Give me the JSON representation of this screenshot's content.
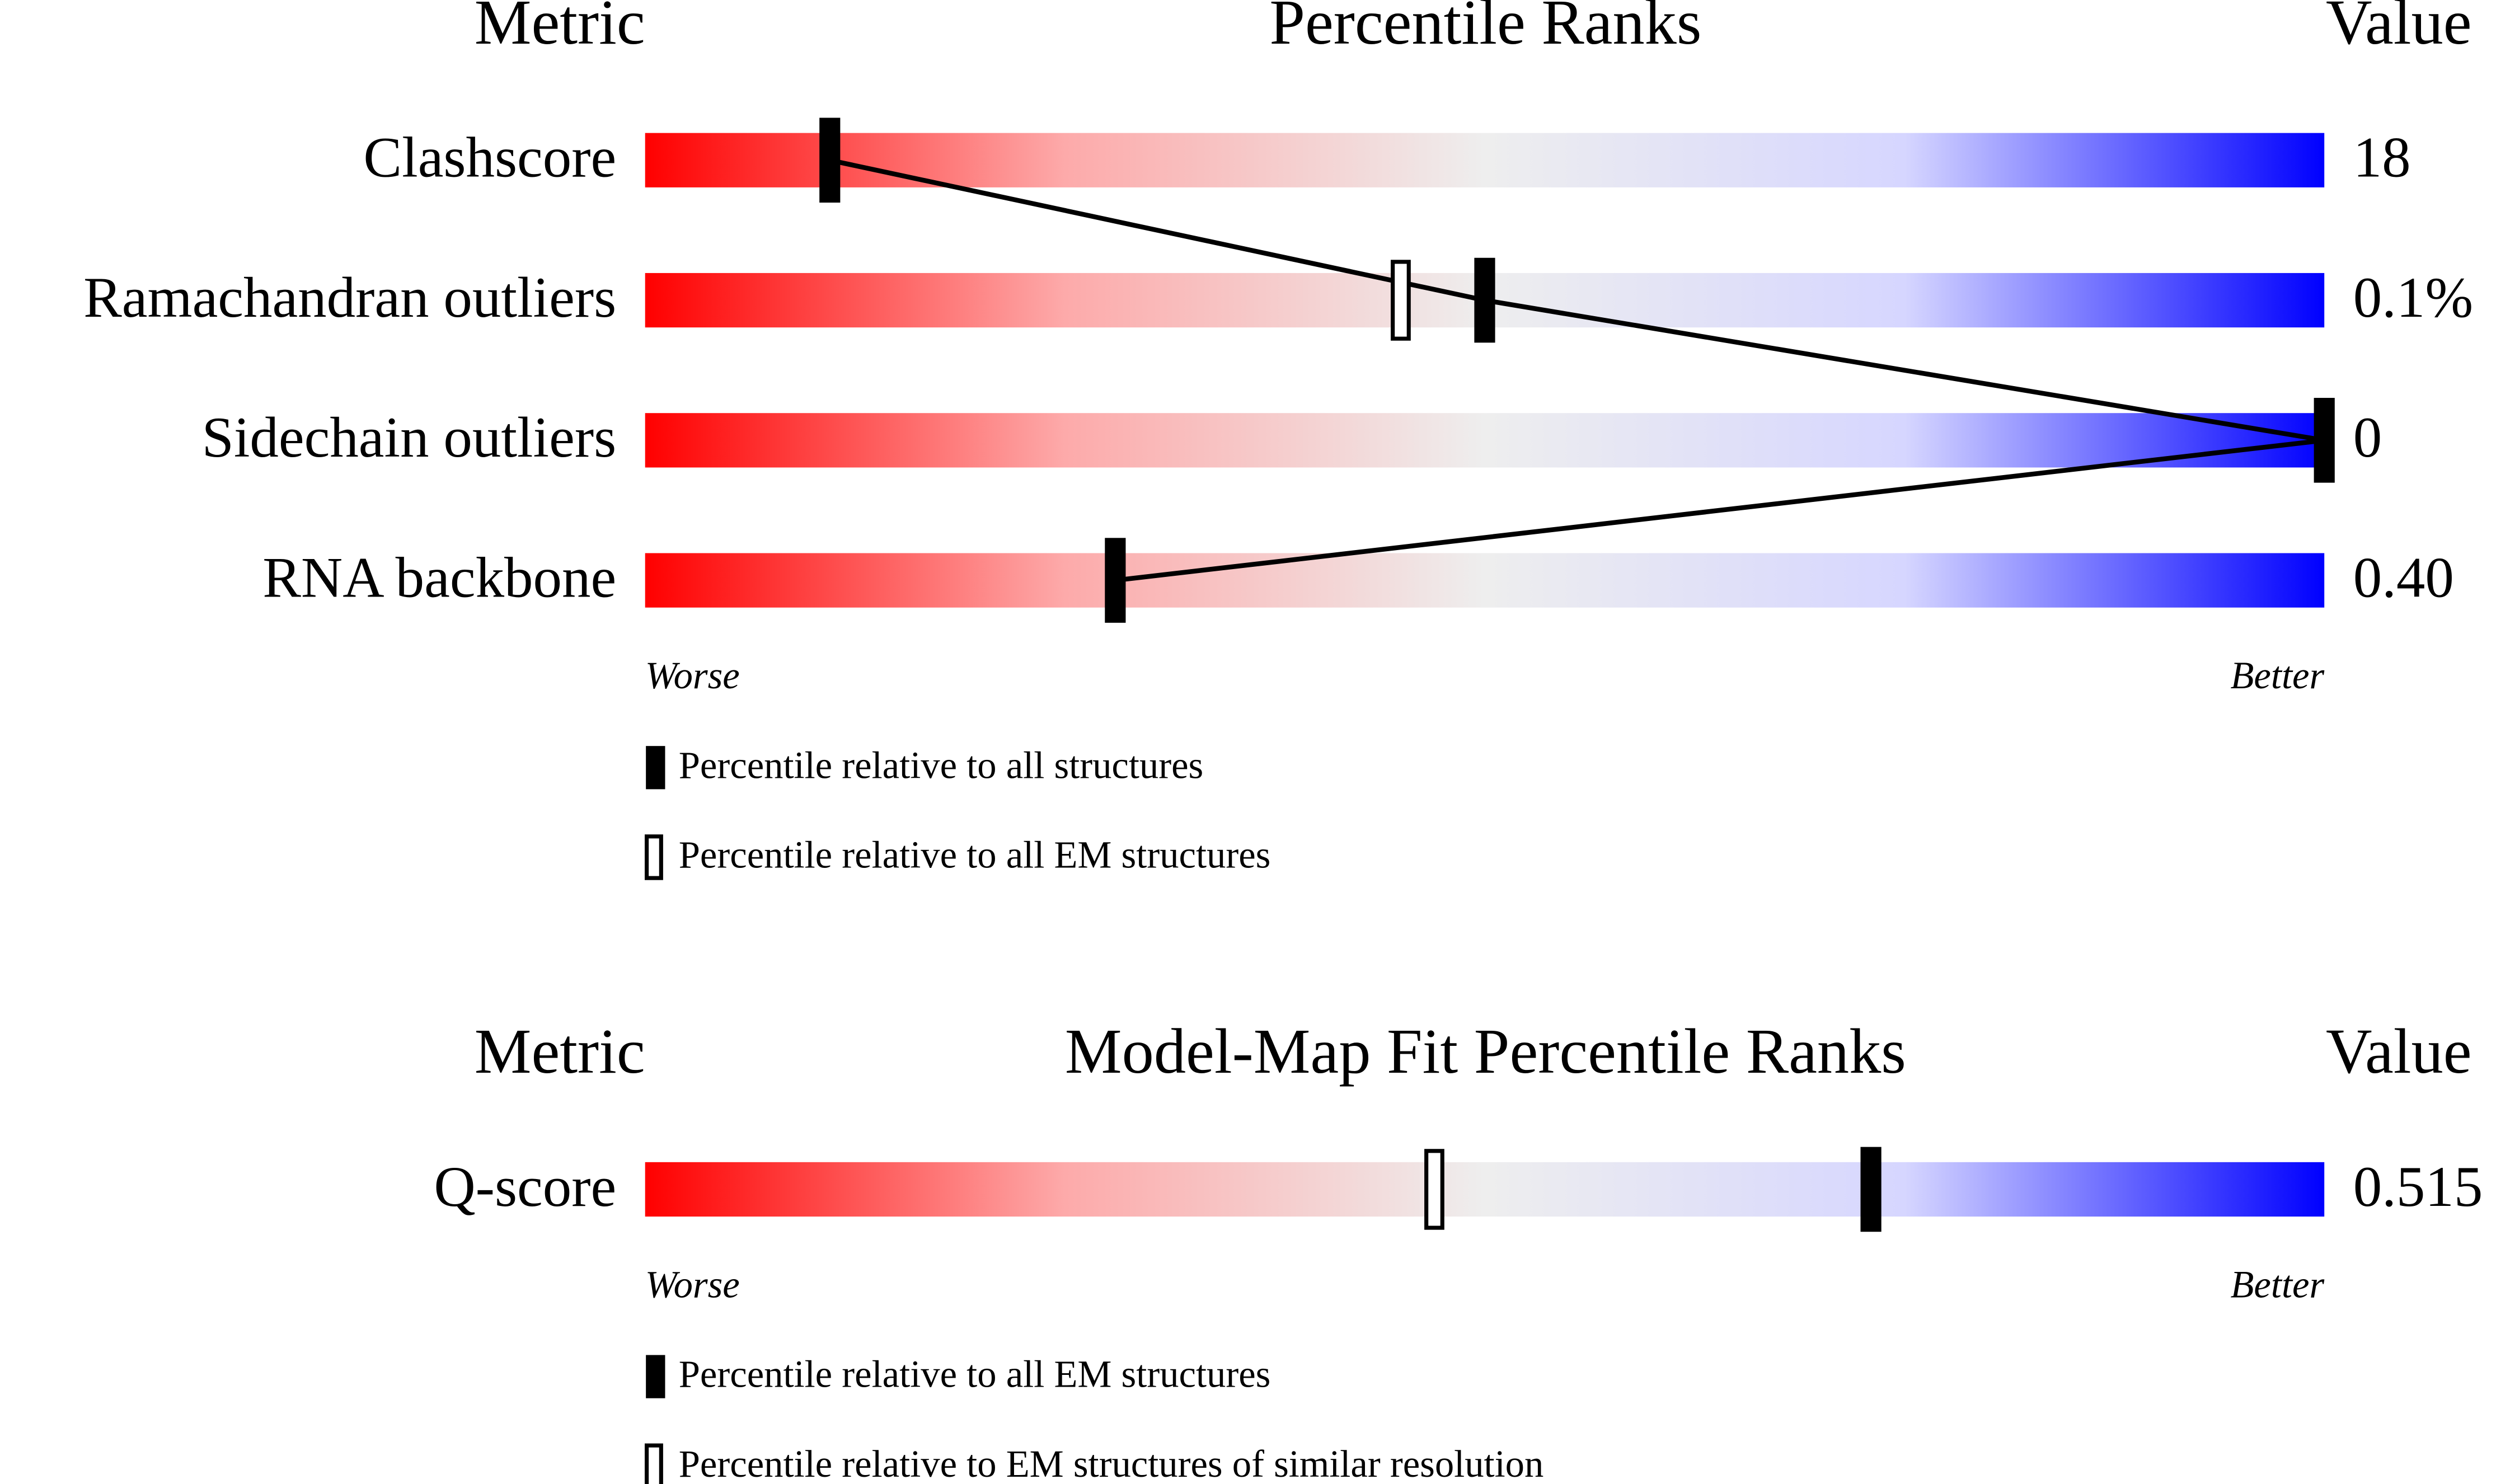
{
  "chart_data": [
    {
      "type": "slider",
      "title": "Percentile Ranks",
      "metric_header": "Metric",
      "value_header": "Value",
      "categories": [
        "Clashscore",
        "Ramachandran outliers",
        "Sidechain outliers",
        "RNA backbone"
      ],
      "printed_values": [
        "18",
        "0.1%",
        "0",
        "0.40"
      ],
      "xlim": [
        0,
        100
      ],
      "low_label": "Worse",
      "high_label": "Better",
      "series": [
        {
          "name": "Percentile relative to all structures",
          "color": "#000000",
          "values": [
            11,
            50,
            100,
            28
          ]
        },
        {
          "name": "Percentile relative to all EM structures",
          "color": "#ffffff",
          "values": [
            null,
            45,
            null,
            null
          ]
        }
      ]
    },
    {
      "type": "slider",
      "title": "Model-Map Fit Percentile Ranks",
      "metric_header": "Metric",
      "value_header": "Value",
      "categories": [
        "Q-score"
      ],
      "printed_values": [
        "0.515"
      ],
      "xlim": [
        0,
        100
      ],
      "low_label": "Worse",
      "high_label": "Better",
      "series": [
        {
          "name": "Percentile relative to all EM structures",
          "color": "#000000",
          "values": [
            73
          ]
        },
        {
          "name": "Percentile relative to EM structures of similar resolution",
          "color": "#ffffff",
          "values": [
            47
          ]
        }
      ]
    }
  ]
}
